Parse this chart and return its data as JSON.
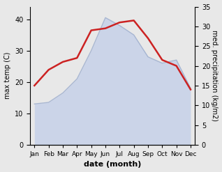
{
  "months": [
    "Jan",
    "Feb",
    "Mar",
    "Apr",
    "May",
    "Jun",
    "Jul",
    "Aug",
    "Sep",
    "Oct",
    "Nov",
    "Dec"
  ],
  "max_temp": [
    13.0,
    13.5,
    16.5,
    21.0,
    30.0,
    40.5,
    38.0,
    35.0,
    28.0,
    26.0,
    27.0,
    18.0
  ],
  "precipitation": [
    15.0,
    19.0,
    21.0,
    22.0,
    29.0,
    29.5,
    31.0,
    31.5,
    27.0,
    21.5,
    20.0,
    14.0
  ],
  "temp_fill_color": "#b8c8e8",
  "temp_line_color": "#9aabcc",
  "precip_color": "#cc2222",
  "bg_color": "#e8e8e8",
  "left_ylim": [
    0,
    44
  ],
  "right_ylim": [
    0,
    35
  ],
  "left_yticks": [
    0,
    10,
    20,
    30,
    40
  ],
  "right_yticks": [
    0,
    5,
    10,
    15,
    20,
    25,
    30,
    35
  ],
  "ylabel_left": "max temp (C)",
  "ylabel_right": "med. precipitation (kg/m2)",
  "xlabel": "date (month)",
  "figsize": [
    3.18,
    2.47
  ],
  "dpi": 100
}
